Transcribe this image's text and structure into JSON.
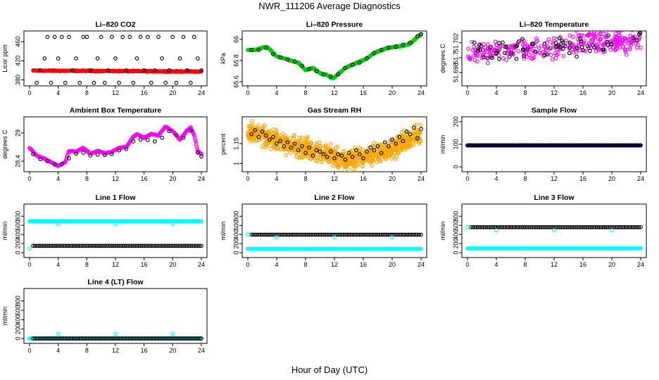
{
  "page": {
    "title": "NWR_111206  Average Diagnostics",
    "xlabel": "Hour of Day (UTC)"
  },
  "colors": {
    "black": "#000000",
    "red": "#ff0000",
    "green": "#00cc00",
    "magenta": "#ff00ff",
    "orange": "#ffa500",
    "cyan": "#00ffff",
    "blue": "#0000ff"
  },
  "chart_data": [
    {
      "id": "co2",
      "type": "scatter",
      "title": "Li–820 CO2",
      "ylabel": "Licor ppm",
      "xlim": [
        0,
        24
      ],
      "ylim": [
        372,
        478
      ],
      "xticks": [
        0,
        4,
        8,
        12,
        16,
        20,
        24
      ],
      "yticks": [
        380,
        420,
        460
      ],
      "series": [
        {
          "color": "red",
          "kind": "dense",
          "x": [
            0.5,
            24
          ],
          "y": [
            399.5,
            397.5
          ],
          "noise": 1.5
        },
        {
          "color": "black",
          "kind": "scatter",
          "x": [
            1.0,
            1.5,
            2.1,
            2.5,
            3.0,
            3.5,
            4.0,
            4.5,
            5.0,
            5.5,
            6.0,
            6.5,
            7.0,
            7.5,
            8.0,
            8.5,
            9.0,
            9.5,
            10.0,
            10.5,
            11.0,
            11.5,
            12.0,
            12.5,
            13.0,
            13.5,
            14.0,
            14.5,
            15.0,
            15.5,
            16.0,
            16.5,
            17.0,
            17.5,
            18.0,
            18.5,
            19.0,
            19.5,
            20.0,
            20.5,
            21.0,
            21.5,
            22.0,
            22.5,
            23.0,
            23.5,
            24.0
          ],
          "y": [
            374,
            400,
            425,
            470,
            374,
            470,
            425,
            470,
            374,
            470,
            400,
            425,
            374,
            470,
            470,
            400,
            374,
            425,
            470,
            374,
            400,
            470,
            425,
            374,
            470,
            400,
            470,
            374,
            425,
            470,
            400,
            470,
            374,
            400,
            470,
            425,
            374,
            400,
            470,
            374,
            425,
            470,
            400,
            374,
            470,
            425,
            400
          ]
        }
      ]
    },
    {
      "id": "pressure",
      "type": "scatter",
      "title": "Li–820 Pressure",
      "ylabel": "kPa",
      "xlim": [
        0,
        24
      ],
      "ylim": [
        65.58,
        66.06
      ],
      "xticks": [
        0,
        4,
        8,
        12,
        16,
        20,
        24
      ],
      "yticks": [
        65.6,
        65.8,
        66.0
      ],
      "series": [
        {
          "color": "green",
          "kind": "dense",
          "noise": 0.008,
          "x": [
            0.0,
            1.0,
            2.0,
            2.5,
            3.0,
            4.0,
            5.0,
            6.0,
            7.0,
            8.0,
            9.0,
            10.0,
            11.0,
            11.8,
            12.5,
            13.5,
            14.5,
            15.5,
            16.5,
            17.5,
            18.5,
            19.5,
            20.5,
            21.5,
            22.5,
            23.5,
            24.0
          ],
          "y": [
            65.9,
            65.9,
            65.92,
            65.93,
            65.91,
            65.84,
            65.82,
            65.8,
            65.78,
            65.71,
            65.73,
            65.68,
            65.66,
            65.63,
            65.67,
            65.73,
            65.76,
            65.79,
            65.82,
            65.87,
            65.9,
            65.92,
            65.93,
            65.94,
            65.96,
            66.02,
            66.05
          ]
        },
        {
          "color": "black",
          "kind": "scatter",
          "x": [
            0.5,
            1.5,
            2.5,
            3.5,
            4.5,
            5.5,
            6.5,
            7.5,
            8.5,
            9.5,
            10.5,
            11.5,
            12.5,
            13.5,
            14.5,
            15.5,
            16.5,
            17.5,
            18.5,
            19.5,
            20.5,
            21.5,
            22.5,
            23.5,
            24.0
          ],
          "y": [
            65.9,
            65.9,
            65.92,
            65.86,
            65.83,
            65.81,
            65.79,
            65.75,
            65.72,
            65.7,
            65.67,
            65.65,
            65.67,
            65.73,
            65.76,
            65.78,
            65.82,
            65.87,
            65.9,
            65.92,
            65.93,
            65.95,
            65.97,
            66.03,
            66.05
          ]
        }
      ]
    },
    {
      "id": "licor-temp",
      "type": "scatter",
      "title": "Li–820 Temperature",
      "ylabel": "degrees C",
      "xlim": [
        0,
        24
      ],
      "ylim": [
        51.6965,
        51.7033
      ],
      "xticks": [
        0,
        4,
        8,
        12,
        16,
        20,
        24
      ],
      "yticks": [
        51.698,
        51.7,
        51.702
      ],
      "series": [
        {
          "color": "magenta",
          "kind": "cloud",
          "count": 340,
          "x": [
            0,
            24
          ],
          "base": [
            51.7005,
            51.7025
          ],
          "spread": 0.0023
        },
        {
          "color": "black",
          "kind": "cloud",
          "count": 70,
          "x": [
            0.3,
            24
          ],
          "base": [
            51.7005,
            51.7022
          ],
          "spread": 0.0018
        }
      ]
    },
    {
      "id": "box-temp",
      "type": "scatter",
      "title": "Ambient Box Temperature",
      "ylabel": "degrees C",
      "xlim": [
        0,
        24
      ],
      "ylim": [
        28.22,
        29.3
      ],
      "xticks": [
        0,
        4,
        8,
        12,
        16,
        20,
        24
      ],
      "yticks": [
        28.4,
        29.0
      ],
      "series": [
        {
          "color": "magenta",
          "kind": "dense",
          "noise": 0.012,
          "x": [
            0.0,
            1.0,
            2.0,
            3.0,
            4.0,
            5.0,
            5.5,
            6.5,
            7.5,
            8.5,
            9.5,
            10.5,
            11.5,
            12.5,
            13.5,
            14.5,
            15.0,
            16.0,
            17.0,
            18.0,
            19.0,
            20.0,
            21.0,
            22.0,
            22.5,
            23.0,
            23.5,
            24.0
          ],
          "y": [
            28.68,
            28.52,
            28.46,
            28.38,
            28.3,
            28.38,
            28.62,
            28.6,
            28.68,
            28.56,
            28.62,
            28.57,
            28.6,
            28.68,
            28.7,
            28.92,
            28.98,
            28.9,
            28.98,
            28.95,
            29.14,
            29.04,
            28.86,
            29.05,
            29.12,
            28.95,
            28.62,
            28.55
          ]
        },
        {
          "color": "black",
          "kind": "scatter",
          "x": [
            0.5,
            1.5,
            2.5,
            3.5,
            4.5,
            5.5,
            6.5,
            7.5,
            8.5,
            9.5,
            10.5,
            11.5,
            12.5,
            13.5,
            14.5,
            15.5,
            16.5,
            17.5,
            18.5,
            19.5,
            20.5,
            21.5,
            22.5,
            23.5,
            24.0
          ],
          "y": [
            28.55,
            28.44,
            28.4,
            28.33,
            28.34,
            28.46,
            28.56,
            28.58,
            28.52,
            28.54,
            28.53,
            28.55,
            28.63,
            28.66,
            28.82,
            28.86,
            28.85,
            28.82,
            28.9,
            29.04,
            28.96,
            28.9,
            29.05,
            28.58,
            28.5
          ]
        }
      ]
    },
    {
      "id": "rh",
      "type": "scatter",
      "title": "Gas Stream RH",
      "ylabel": "percent",
      "xlim": [
        0,
        24
      ],
      "ylim": [
        0.955,
        1.335
      ],
      "xticks": [
        0,
        4,
        8,
        12,
        16,
        20,
        24
      ],
      "yticks": [
        1.0,
        1.15
      ],
      "series": [
        {
          "color": "orange",
          "kind": "band",
          "count": 900,
          "x": [
            0,
            2,
            4,
            6,
            8,
            10,
            12,
            14,
            16,
            18,
            20,
            22,
            24
          ],
          "y": [
            1.24,
            1.21,
            1.17,
            1.14,
            1.11,
            1.08,
            1.05,
            1.03,
            1.04,
            1.08,
            1.12,
            1.17,
            1.22
          ],
          "spread": 0.11
        },
        {
          "color": "black",
          "kind": "scatter",
          "x": [
            0.5,
            1.0,
            1.5,
            2.0,
            2.5,
            3.0,
            3.5,
            4.0,
            4.5,
            5.0,
            5.5,
            6.0,
            6.5,
            7.0,
            7.5,
            8.0,
            8.5,
            9.0,
            9.5,
            10.0,
            10.5,
            11.0,
            11.5,
            12.0,
            12.5,
            13.0,
            13.5,
            14.0,
            14.5,
            15.0,
            15.5,
            16.0,
            16.5,
            17.0,
            17.5,
            18.0,
            18.5,
            19.0,
            19.5,
            20.0,
            20.5,
            21.0,
            21.5,
            22.0,
            22.5,
            23.0,
            23.5,
            24.0
          ],
          "y": [
            1.22,
            1.25,
            1.2,
            1.24,
            1.21,
            1.18,
            1.2,
            1.15,
            1.17,
            1.13,
            1.16,
            1.12,
            1.15,
            1.1,
            1.13,
            1.08,
            1.12,
            1.06,
            1.1,
            1.09,
            1.07,
            1.05,
            1.09,
            1.04,
            1.07,
            1.06,
            1.03,
            1.08,
            1.05,
            1.1,
            1.07,
            1.04,
            1.09,
            1.12,
            1.1,
            1.13,
            1.08,
            1.16,
            1.13,
            1.18,
            1.15,
            1.2,
            1.17,
            1.24,
            1.22,
            1.27,
            1.19,
            1.26
          ]
        }
      ]
    },
    {
      "id": "sample-flow",
      "type": "scatter",
      "title": "Sample Flow",
      "ylabel": "ml/min",
      "xlim": [
        0,
        24
      ],
      "ylim": [
        -12,
        212
      ],
      "xticks": [
        0,
        4,
        8,
        12,
        16,
        20,
        24
      ],
      "yticks": [
        0,
        100,
        200
      ],
      "series": [
        {
          "color": "blue",
          "kind": "dense",
          "noise": 0.5,
          "x": [
            0,
            24
          ],
          "y": [
            95,
            95
          ]
        },
        {
          "color": "black",
          "kind": "line-points",
          "step": 0.25,
          "x": [
            0,
            24
          ],
          "y": [
            95,
            95
          ]
        }
      ]
    },
    {
      "id": "line1",
      "type": "scatter",
      "title": "Line 1 Flow",
      "ylabel": "ml/min",
      "xlim": [
        0,
        24
      ],
      "ylim": [
        -60,
        1020
      ],
      "xticks": [
        0,
        4,
        8,
        12,
        16,
        20,
        24
      ],
      "yticks": [
        0,
        200,
        400,
        600,
        800
      ],
      "series": [
        {
          "color": "cyan",
          "kind": "line-points",
          "step": 0.1,
          "x": [
            0,
            24
          ],
          "y": [
            690,
            690
          ],
          "dips": [
            [
              4,
              630
            ],
            [
              12,
              630
            ],
            [
              20,
              630
            ]
          ]
        },
        {
          "color": "black",
          "kind": "line-points",
          "step": 0.25,
          "x": [
            0.5,
            24
          ],
          "y": [
            150,
            150
          ]
        },
        {
          "color": "cyan",
          "kind": "scatter",
          "x": [
            0
          ],
          "y": [
            90
          ]
        }
      ]
    },
    {
      "id": "line2",
      "type": "scatter",
      "title": "Line 2 Flow",
      "ylabel": "ml/min",
      "xlim": [
        0,
        24
      ],
      "ylim": [
        -60,
        1020
      ],
      "xticks": [
        0,
        4,
        8,
        12,
        16,
        20,
        24
      ],
      "yticks": [
        0,
        200,
        400,
        600,
        800
      ],
      "series": [
        {
          "color": "cyan",
          "kind": "line-points",
          "step": 0.1,
          "x": [
            0,
            24
          ],
          "y": [
            85,
            85
          ]
        },
        {
          "color": "black",
          "kind": "line-points",
          "step": 0.25,
          "x": [
            0.5,
            24
          ],
          "y": [
            395,
            395
          ]
        },
        {
          "color": "cyan",
          "kind": "scatter",
          "x": [
            0,
            4,
            12,
            20
          ],
          "y": [
            400,
            340,
            340,
            340
          ]
        }
      ]
    },
    {
      "id": "line3",
      "type": "scatter",
      "title": "Line 3 Flow",
      "ylabel": "ml/min",
      "xlim": [
        0,
        24
      ],
      "ylim": [
        -60,
        1020
      ],
      "xticks": [
        0,
        4,
        8,
        12,
        16,
        20,
        24
      ],
      "yticks": [
        0,
        200,
        400,
        600,
        800
      ],
      "series": [
        {
          "color": "cyan",
          "kind": "line-points",
          "step": 0.1,
          "x": [
            0,
            24
          ],
          "y": [
            95,
            95
          ]
        },
        {
          "color": "black",
          "kind": "line-points",
          "step": 0.25,
          "x": [
            0.5,
            24
          ],
          "y": [
            560,
            560
          ]
        },
        {
          "color": "cyan",
          "kind": "scatter",
          "x": [
            0,
            4,
            12,
            20
          ],
          "y": [
            560,
            490,
            490,
            490
          ]
        }
      ]
    },
    {
      "id": "line4",
      "type": "scatter",
      "title": "Line 4 (LT) Flow",
      "ylabel": "ml/min",
      "xlim": [
        0,
        24
      ],
      "ylim": [
        -60,
        1020
      ],
      "xticks": [
        0,
        4,
        8,
        12,
        16,
        20,
        24
      ],
      "yticks": [
        0,
        200,
        400,
        600,
        800
      ],
      "series": [
        {
          "color": "cyan",
          "kind": "line-points",
          "step": 0.1,
          "x": [
            0,
            24
          ],
          "y": [
            0,
            0
          ]
        },
        {
          "color": "black",
          "kind": "line-points",
          "step": 0.25,
          "x": [
            0.5,
            24
          ],
          "y": [
            0,
            0
          ]
        },
        {
          "color": "cyan",
          "kind": "scatter",
          "x": [
            4,
            12,
            20
          ],
          "y": [
            100,
            100,
            100
          ]
        }
      ]
    }
  ]
}
